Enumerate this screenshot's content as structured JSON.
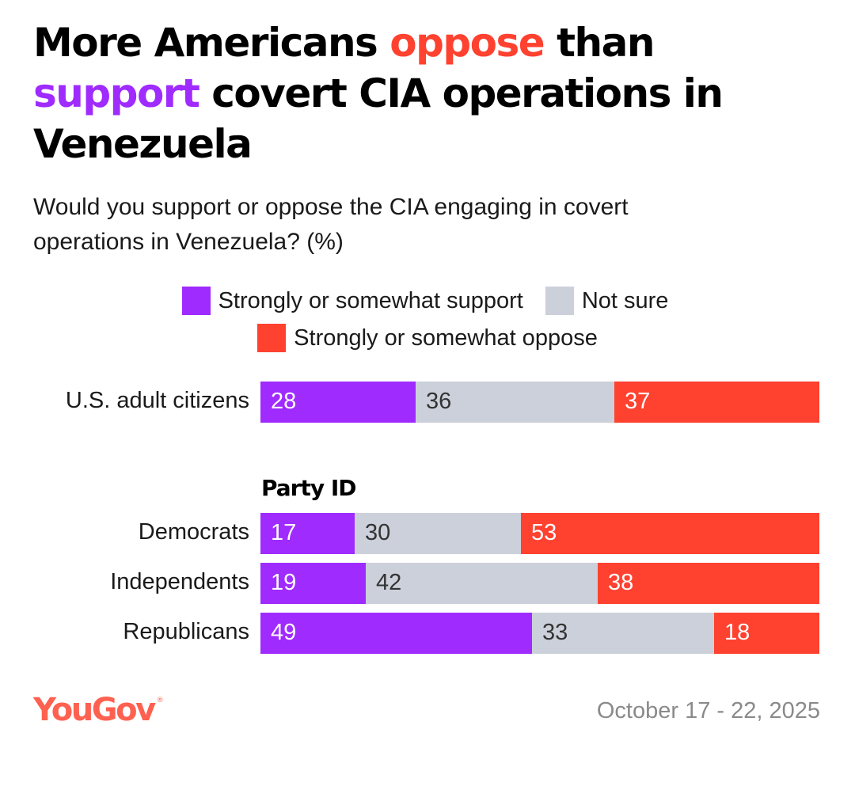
{
  "header": {
    "title_parts": [
      "More Americans ",
      "oppose",
      " than ",
      "support",
      " covert CIA operations in Venezuela"
    ],
    "subtitle": "Would you support or oppose the CIA engaging in covert operations in Venezuela? (%)"
  },
  "colors": {
    "support": "#9f2bff",
    "not_sure": "#ccd0da",
    "oppose": "#ff4130",
    "label_on_dark": "#ffffff",
    "label_on_light": "#333333",
    "brand": "#ff6150"
  },
  "chart_data": {
    "type": "bar",
    "orientation": "horizontal-stacked",
    "title": "More Americans oppose than support covert CIA operations in Venezuela",
    "subtitle": "Would you support or oppose the CIA engaging in covert operations in Venezuela? (%)",
    "legend": {
      "placement": "top-center",
      "entries": [
        "Strongly or somewhat support",
        "Not sure",
        "Strongly or somewhat oppose"
      ]
    },
    "xlim": [
      0,
      101
    ],
    "grid": false,
    "groups": [
      {
        "label": "",
        "categories": [
          "U.S. adult citizens"
        ]
      },
      {
        "label": "Party ID",
        "categories": [
          "Democrats",
          "Independents",
          "Republicans"
        ]
      }
    ],
    "categories": [
      "U.S. adult citizens",
      "Democrats",
      "Independents",
      "Republicans"
    ],
    "series": [
      {
        "name": "Strongly or somewhat support",
        "key": "support",
        "values": [
          28,
          17,
          19,
          49
        ]
      },
      {
        "name": "Not sure",
        "key": "not_sure",
        "values": [
          36,
          30,
          42,
          33
        ]
      },
      {
        "name": "Strongly or somewhat oppose",
        "key": "oppose",
        "values": [
          37,
          53,
          38,
          18
        ]
      }
    ]
  },
  "footer": {
    "brand": "YouGov",
    "brand_mark": "®",
    "date_range": "October 17 - 22, 2025"
  }
}
